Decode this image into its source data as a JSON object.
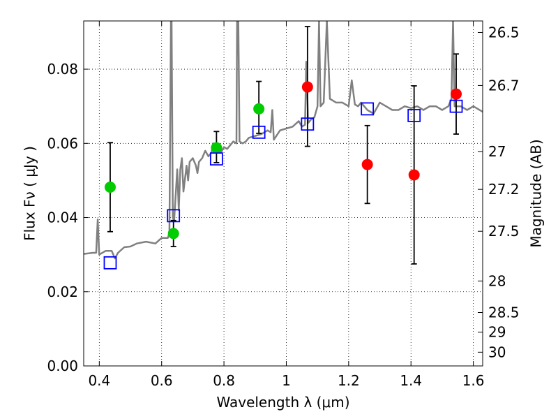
{
  "chart_data": {
    "type": "scatter",
    "xlabel": "Wavelength  λ (μm)",
    "ylabel": "Flux  Fν  ( μJy )",
    "y2label": "Magnitude (AB)",
    "xlim": [
      0.35,
      1.63
    ],
    "ylim": [
      0.0,
      0.093
    ],
    "grid": true,
    "xticks": [
      0.4,
      0.6,
      0.8,
      1.0,
      1.2,
      1.4,
      1.6
    ],
    "xtick_labels": [
      "0.4",
      "0.6",
      "0.8",
      "1",
      "1.2",
      "1.4",
      "1.6"
    ],
    "yticks": [
      0.0,
      0.02,
      0.04,
      0.06,
      0.08
    ],
    "ytick_labels": [
      "0.00",
      "0.02",
      "0.04",
      "0.06",
      "0.08"
    ],
    "y2ticks": [
      {
        "label": "26.5",
        "flux": 0.0899
      },
      {
        "label": "26.7",
        "flux": 0.0756
      },
      {
        "label": "27",
        "flux": 0.0578
      },
      {
        "label": "27.2",
        "flux": 0.0476
      },
      {
        "label": "27.5",
        "flux": 0.0363
      },
      {
        "label": "28",
        "flux": 0.0229
      },
      {
        "label": "28.5",
        "flux": 0.0144
      },
      {
        "label": "29",
        "flux": 0.0091
      },
      {
        "label": "30",
        "flux": 0.0037
      }
    ],
    "series": [
      {
        "kind": "line",
        "color": "#808080",
        "x": [
          0.35,
          0.38,
          0.39,
          0.395,
          0.4,
          0.42,
          0.44,
          0.45,
          0.46,
          0.48,
          0.5,
          0.52,
          0.55,
          0.58,
          0.6,
          0.62,
          0.625,
          0.63,
          0.632,
          0.636,
          0.64,
          0.65,
          0.655,
          0.66,
          0.665,
          0.67,
          0.68,
          0.685,
          0.69,
          0.7,
          0.71,
          0.715,
          0.72,
          0.73,
          0.74,
          0.75,
          0.76,
          0.765,
          0.77,
          0.78,
          0.79,
          0.8,
          0.81,
          0.82,
          0.83,
          0.84,
          0.842,
          0.846,
          0.85,
          0.86,
          0.87,
          0.88,
          0.9,
          0.92,
          0.94,
          0.95,
          0.955,
          0.96,
          0.98,
          1.0,
          1.02,
          1.04,
          1.05,
          1.06,
          1.064,
          1.07,
          1.08,
          1.09,
          1.1,
          1.105,
          1.11,
          1.12,
          1.13,
          1.14,
          1.16,
          1.18,
          1.2,
          1.21,
          1.22,
          1.23,
          1.24,
          1.25,
          1.26,
          1.28,
          1.3,
          1.32,
          1.34,
          1.36,
          1.38,
          1.4,
          1.42,
          1.44,
          1.46,
          1.48,
          1.5,
          1.52,
          1.53,
          1.535,
          1.54,
          1.56,
          1.58,
          1.6,
          1.63
        ],
        "y": [
          0.0302,
          0.0305,
          0.0305,
          0.0395,
          0.03,
          0.031,
          0.031,
          0.029,
          0.0305,
          0.032,
          0.0322,
          0.033,
          0.0335,
          0.033,
          0.0345,
          0.0345,
          0.036,
          0.093,
          0.093,
          0.04,
          0.039,
          0.053,
          0.042,
          0.053,
          0.056,
          0.047,
          0.054,
          0.05,
          0.055,
          0.056,
          0.054,
          0.052,
          0.055,
          0.056,
          0.058,
          0.0565,
          0.0575,
          0.06,
          0.0585,
          0.058,
          0.0575,
          0.059,
          0.0585,
          0.0595,
          0.0605,
          0.06,
          0.093,
          0.093,
          0.0605,
          0.06,
          0.0605,
          0.0615,
          0.062,
          0.0625,
          0.0635,
          0.063,
          0.069,
          0.061,
          0.0635,
          0.064,
          0.0645,
          0.066,
          0.0645,
          0.065,
          0.082,
          0.0655,
          0.0665,
          0.067,
          0.07,
          0.093,
          0.07,
          0.071,
          0.093,
          0.072,
          0.071,
          0.071,
          0.07,
          0.077,
          0.0705,
          0.07,
          0.071,
          0.07,
          0.069,
          0.068,
          0.071,
          0.07,
          0.069,
          0.069,
          0.07,
          0.0695,
          0.07,
          0.069,
          0.07,
          0.07,
          0.069,
          0.07,
          0.072,
          0.093,
          0.07,
          0.07,
          0.069,
          0.07,
          0.0685
        ]
      },
      {
        "kind": "scatter-errorbar",
        "marker": "circle",
        "color": "#00cc00",
        "x": [
          0.435,
          0.638,
          0.776,
          0.912
        ],
        "y": [
          0.0482,
          0.0357,
          0.0588,
          0.0693
        ],
        "yerr_low": [
          0.012,
          0.0035,
          0.004,
          0.0066
        ],
        "yerr_high": [
          0.012,
          0.0035,
          0.0044,
          0.0074
        ]
      },
      {
        "kind": "scatter-errorbar",
        "marker": "circle",
        "color": "#ff0000",
        "x": [
          1.068,
          1.26,
          1.41,
          1.545
        ],
        "y": [
          0.0752,
          0.0543,
          0.0515,
          0.0733
        ],
        "yerr_low": [
          0.016,
          0.0105,
          0.024,
          0.0108
        ],
        "yerr_high": [
          0.0163,
          0.0105,
          0.024,
          0.0108
        ]
      },
      {
        "kind": "scatter",
        "marker": "square-open",
        "color": "#0000ff",
        "x": [
          0.435,
          0.638,
          0.776,
          0.912,
          1.068,
          1.26,
          1.41,
          1.545
        ],
        "y": [
          0.0278,
          0.0405,
          0.0558,
          0.063,
          0.0652,
          0.0693,
          0.0675,
          0.07
        ]
      }
    ]
  }
}
